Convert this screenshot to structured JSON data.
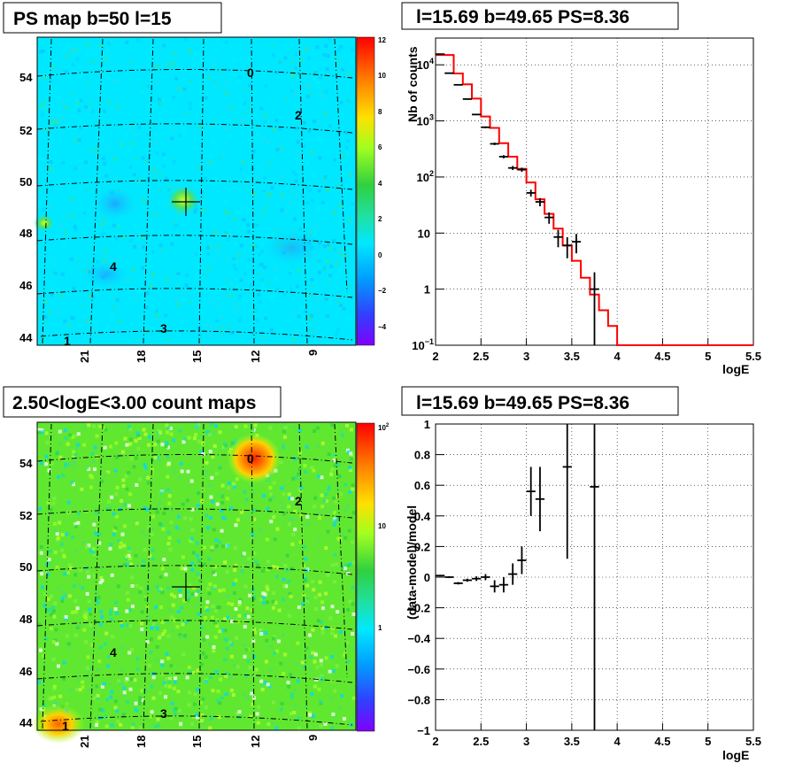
{
  "colors": {
    "line_red": "#ff0000",
    "grid": "#000000"
  },
  "panels": {
    "ps_map": {
      "title": "PS map b=50 l=15"
    },
    "spectrum": {
      "title": "l=15.69 b=49.65 PS=8.36"
    },
    "count_map": {
      "title": "2.50<logE<3.00 count maps"
    },
    "residual": {
      "title": "l=15.69 b=49.65 PS=8.36"
    }
  },
  "chart_data": [
    {
      "type": "heatmap",
      "title": "PS map b=50 l=15",
      "y_ticks": [
        "44",
        "46",
        "48",
        "50",
        "52",
        "54"
      ],
      "x_ticks": [
        "21",
        "18",
        "15",
        "12",
        "9"
      ],
      "colorbar_ticks": [
        "12",
        "10",
        "8",
        "6",
        "4",
        "2",
        "0",
        "−2",
        "−4"
      ],
      "colorbar_range": [
        -5,
        12
      ],
      "sources": [
        {
          "label": "0"
        },
        {
          "label": "2"
        },
        {
          "label": "4"
        },
        {
          "label": "3"
        },
        {
          "label": "1"
        }
      ],
      "marker": "+ at l=15.69 b=49.65"
    },
    {
      "type": "line",
      "title": "l=15.69 b=49.65 PS=8.36",
      "xlabel": "logE",
      "ylabel": "Nb of counts",
      "xlim": [
        2,
        5.5
      ],
      "ylim": [
        0.1,
        30000
      ],
      "yscale": "log",
      "x_ticks": [
        "2",
        "2.5",
        "3",
        "3.5",
        "4",
        "4.5",
        "5",
        "5.5"
      ],
      "y_ticks": [
        {
          "v": 10000,
          "t": "10",
          "e": "4"
        },
        {
          "v": 1000,
          "t": "10",
          "e": "3"
        },
        {
          "v": 100,
          "t": "10",
          "e": "2"
        },
        {
          "v": 10,
          "t": "10"
        },
        {
          "v": 1,
          "t": "1"
        },
        {
          "v": 0.1,
          "t": "10",
          "e": "−1"
        }
      ],
      "grid": true,
      "model_steps": [
        [
          2.0,
          2.2,
          15000
        ],
        [
          2.2,
          2.3,
          7000
        ],
        [
          2.3,
          2.4,
          4500
        ],
        [
          2.4,
          2.5,
          2500
        ],
        [
          2.5,
          2.6,
          1200
        ],
        [
          2.6,
          2.7,
          750
        ],
        [
          2.7,
          2.8,
          400
        ],
        [
          2.8,
          2.9,
          230
        ],
        [
          2.9,
          3.0,
          140
        ],
        [
          3.0,
          3.1,
          80
        ],
        [
          3.1,
          3.2,
          40
        ],
        [
          3.2,
          3.3,
          22
        ],
        [
          3.3,
          3.4,
          12
        ],
        [
          3.4,
          3.5,
          6
        ],
        [
          3.5,
          3.6,
          3.2
        ],
        [
          3.6,
          3.7,
          1.6
        ],
        [
          3.7,
          3.8,
          0.8
        ],
        [
          3.8,
          3.9,
          0.42
        ],
        [
          3.9,
          4.0,
          0.22
        ],
        [
          4.0,
          5.5,
          0.1
        ]
      ],
      "data_points": [
        [
          2.05,
          15500,
          2.0,
          2.1
        ],
        [
          2.15,
          7100,
          2.1,
          2.2
        ],
        [
          2.25,
          4400,
          2.2,
          2.3
        ],
        [
          2.35,
          2450,
          2.3,
          2.4
        ],
        [
          2.45,
          1300,
          2.4,
          2.5
        ],
        [
          2.55,
          770,
          2.5,
          2.6
        ],
        [
          2.65,
          390,
          2.6,
          2.7
        ],
        [
          2.75,
          230,
          2.7,
          2.8
        ],
        [
          2.85,
          145,
          2.8,
          2.9
        ],
        [
          2.95,
          135,
          2.9,
          3.0
        ],
        [
          3.05,
          52,
          3.0,
          3.1
        ],
        [
          3.15,
          36,
          3.1,
          3.2
        ],
        [
          3.25,
          19,
          3.2,
          3.3
        ],
        [
          3.35,
          8.5,
          3.3,
          3.4
        ],
        [
          3.45,
          6.0,
          3.4,
          3.5
        ],
        [
          3.55,
          7.0,
          3.5,
          3.6
        ],
        [
          3.75,
          1.0,
          3.7,
          3.8
        ]
      ],
      "line_color": "#ff0000"
    },
    {
      "type": "heatmap",
      "title": "2.50<logE<3.00 count maps",
      "y_ticks": [
        "44",
        "46",
        "48",
        "50",
        "52",
        "54"
      ],
      "x_ticks": [
        "21",
        "18",
        "15",
        "12",
        "9"
      ],
      "colorbar_ticks": [
        {
          "t": "10",
          "e": "2"
        },
        {
          "t": "10"
        },
        {
          "t": "1"
        }
      ],
      "colorbar_scale": "log",
      "sources": [
        {
          "label": "0"
        },
        {
          "label": "2"
        },
        {
          "label": "4"
        },
        {
          "label": "3"
        },
        {
          "label": "1"
        }
      ],
      "marker": "+ at l=15.69 b=49.65"
    },
    {
      "type": "scatter",
      "title": "l=15.69 b=49.65 PS=8.36",
      "xlabel": "logE",
      "ylabel": "(data-model)/model",
      "xlim": [
        2,
        5.5
      ],
      "ylim": [
        -1,
        1
      ],
      "x_ticks": [
        "2",
        "2.5",
        "3",
        "3.5",
        "4",
        "4.5",
        "5",
        "5.5"
      ],
      "y_ticks": [
        "1",
        "0.8",
        "0.6",
        "0.4",
        "0.2",
        "0",
        "−0.2",
        "−0.4",
        "−0.6",
        "−0.8",
        "−1"
      ],
      "grid": true,
      "points": [
        [
          2.05,
          0.01,
          0.005
        ],
        [
          2.15,
          0.0,
          0.006
        ],
        [
          2.25,
          -0.04,
          0.008
        ],
        [
          2.35,
          -0.02,
          0.01
        ],
        [
          2.45,
          -0.01,
          0.015
        ],
        [
          2.55,
          0.0,
          0.02
        ],
        [
          2.65,
          -0.06,
          0.04
        ],
        [
          2.75,
          -0.05,
          0.05
        ],
        [
          2.85,
          0.02,
          0.07
        ],
        [
          2.95,
          0.11,
          0.09
        ],
        [
          3.05,
          0.56,
          0.16
        ],
        [
          3.15,
          0.51,
          0.21
        ],
        [
          3.45,
          0.72,
          0.6
        ],
        [
          3.75,
          0.59,
          1.6
        ]
      ]
    }
  ]
}
